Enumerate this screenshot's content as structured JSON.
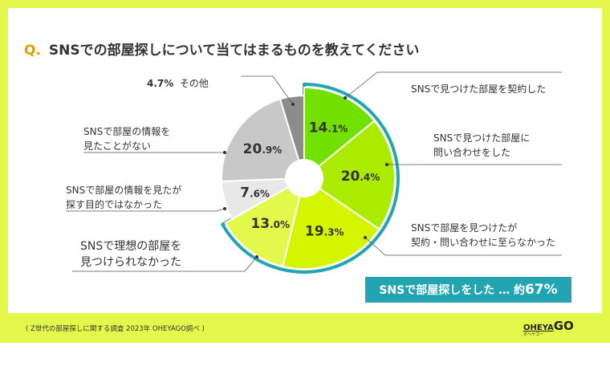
{
  "title": {
    "q": "Q.",
    "text": "SNSでの部屋探しについて当てはまるものを教えてください"
  },
  "chart_data": {
    "type": "pie",
    "title": "SNSでの部屋探しについて当てはまるものを教えてください",
    "slices": [
      {
        "label": "SNSで見つけた部屋を契約した",
        "value": 14.1,
        "int": "14",
        "dec": ".1%",
        "color": "#72e000",
        "highlight": true
      },
      {
        "label": "SNSで見つけた部屋に問い合わせをした",
        "value": 20.4,
        "int": "20",
        "dec": ".4%",
        "color": "#aaeb00",
        "highlight": true
      },
      {
        "label": "SNSで部屋を見つけたが契約・問い合わせに至らなかった",
        "value": 19.3,
        "int": "19",
        "dec": ".3%",
        "color": "#d4f500",
        "highlight": true
      },
      {
        "label": "SNSで理想の部屋を見つけられなかった",
        "value": 13.0,
        "int": "13",
        "dec": ".0%",
        "color": "#e2f84a",
        "highlight": true
      },
      {
        "label": "SNSで部屋の情報を見たが探す目的ではなかった",
        "value": 7.6,
        "int": "7",
        "dec": ".6%",
        "color": "#e8e8e8",
        "highlight": false
      },
      {
        "label": "SNSで部屋の情報を見たことがない",
        "value": 20.9,
        "int": "20",
        "dec": ".9%",
        "color": "#c8c8c8",
        "highlight": false
      },
      {
        "label": "その他",
        "value": 4.7,
        "int": "4",
        "dec": ".7%",
        "color": "#8c8c8c",
        "highlight": false
      }
    ],
    "highlight_color": "#22a5b0"
  },
  "labels": {
    "s0": "SNSで見つけた部屋を契約した",
    "s1a": "SNSで見つけた部屋に",
    "s1b": "問い合わせをした",
    "s2a": "SNSで部屋を見つけたが",
    "s2b": "契約・問い合わせに至らなかった",
    "s3a": "SNSで理想の部屋を",
    "s3b": "見つけられなかった",
    "s4a": "SNSで部屋の情報を見たが",
    "s4b": "探す目的ではなかった",
    "s5a": "SNSで部屋の情報を",
    "s5b": "見たことがない",
    "s6pct": "4.7%",
    "s6": "その他"
  },
  "badge": {
    "text": "SNSで部屋探しをした … 約",
    "pct": "67%"
  },
  "footer": {
    "source": "( Z世代の部屋探しに関する調査 2023年 OHEYAGO調べ )",
    "logo": "OHEYA",
    "logo_go": "GO",
    "logo_sub": "オヘヤゴー"
  }
}
